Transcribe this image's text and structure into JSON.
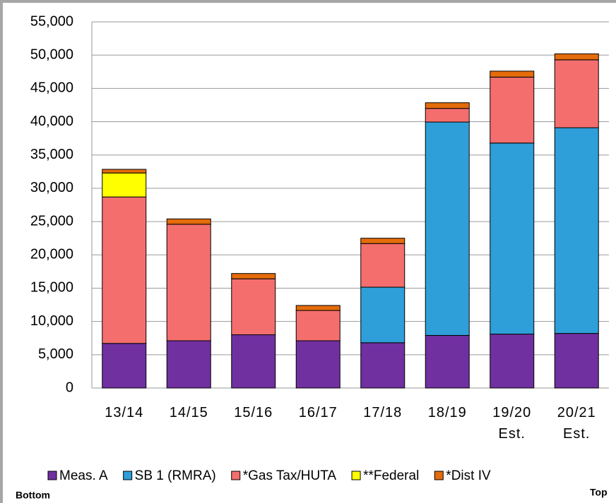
{
  "chart_data": {
    "type": "stacked_bar",
    "categories": [
      "13/14",
      "14/15",
      "15/16",
      "16/17",
      "17/18",
      "18/19",
      "19/20 Est.",
      "20/21 Est."
    ],
    "series": [
      {
        "name": "Meas. A",
        "color": "#7030a0",
        "values": [
          6700,
          7100,
          8000,
          7100,
          6800,
          7900,
          8100,
          8200
        ]
      },
      {
        "name": "SB 1 (RMRA)",
        "color": "#2e9fd8",
        "values": [
          0,
          0,
          0,
          0,
          8350,
          32050,
          28700,
          30900
        ]
      },
      {
        "name": "*Gas Tax/HUTA",
        "color": "#f46e6e",
        "values": [
          22000,
          17500,
          8400,
          4550,
          6550,
          2050,
          9900,
          10200
        ]
      },
      {
        "name": "**Federal",
        "color": "#ffff00",
        "values": [
          3600,
          0,
          0,
          0,
          0,
          0,
          0,
          0
        ]
      },
      {
        "name": "*Dist IV",
        "color": "#e46c0a",
        "values": [
          550,
          800,
          800,
          750,
          800,
          850,
          900,
          900
        ]
      }
    ],
    "ylim": [
      0,
      55000
    ],
    "yticks": [
      {
        "value": 0,
        "label": "0"
      },
      {
        "value": 5000,
        "label": "5,000"
      },
      {
        "value": 10000,
        "label": "10,000"
      },
      {
        "value": 15000,
        "label": "15,000"
      },
      {
        "value": 20000,
        "label": "20,000"
      },
      {
        "value": 25000,
        "label": "25,000"
      },
      {
        "value": 30000,
        "label": "30,000"
      },
      {
        "value": 35000,
        "label": "35,000"
      },
      {
        "value": 40000,
        "label": "40,000"
      },
      {
        "value": 45000,
        "label": "45,000"
      },
      {
        "value": 50000,
        "label": "50,000"
      },
      {
        "value": 55000,
        "label": "55,000"
      }
    ],
    "grid": true,
    "annotations": [
      "Bottom",
      "Top"
    ]
  }
}
